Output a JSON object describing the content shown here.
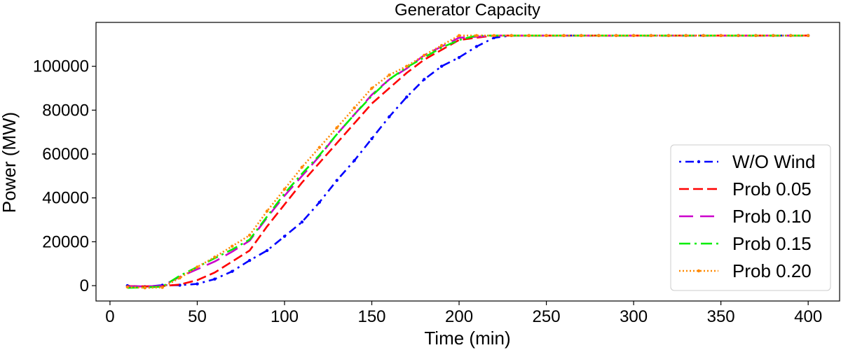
{
  "chart_data": {
    "type": "line",
    "title": "Generator Capacity",
    "xlabel": "Time (min)",
    "ylabel": "Power (MW)",
    "xlim": [
      -8,
      418
    ],
    "ylim": [
      -7000,
      120000
    ],
    "xticks": [
      0,
      50,
      100,
      150,
      200,
      250,
      300,
      350,
      400
    ],
    "yticks": [
      0,
      20000,
      40000,
      60000,
      80000,
      100000
    ],
    "xtick_labels": [
      "0",
      "50",
      "100",
      "150",
      "200",
      "250",
      "300",
      "350",
      "400"
    ],
    "ytick_labels": [
      "0",
      "20000",
      "40000",
      "60000",
      "80000",
      "100000"
    ],
    "grid": false,
    "legend_position": "lower-right",
    "x": [
      10,
      20,
      30,
      40,
      50,
      60,
      70,
      80,
      90,
      100,
      110,
      120,
      130,
      140,
      150,
      160,
      170,
      180,
      190,
      200,
      210,
      220,
      230,
      240,
      250,
      260,
      270,
      280,
      290,
      300,
      310,
      320,
      330,
      340,
      350,
      360,
      370,
      380,
      390,
      400
    ],
    "series": [
      {
        "name": "W/O Wind",
        "color": "#0000ff",
        "dash": "3,6,12,6",
        "marker": "dot",
        "values": [
          0,
          -500,
          200,
          200,
          800,
          3000,
          6500,
          11500,
          16000,
          22500,
          29000,
          38000,
          48000,
          57000,
          67000,
          77000,
          86000,
          94000,
          100000,
          104000,
          109000,
          113000,
          114000,
          114000,
          114000,
          114000,
          114000,
          114000,
          114000,
          114000,
          114000,
          114000,
          114000,
          114000,
          114000,
          114000,
          114000,
          114000,
          114000,
          114000
        ]
      },
      {
        "name": "Prob 0.05",
        "color": "#ff0000",
        "dash": "14,6",
        "marker": "none",
        "values": [
          -200,
          -300,
          -200,
          500,
          2500,
          6000,
          11000,
          16000,
          27000,
          37000,
          47000,
          56000,
          65000,
          74000,
          83000,
          90000,
          97000,
          103000,
          107500,
          112000,
          113000,
          114000,
          114000,
          114000,
          114000,
          114000,
          114000,
          114000,
          114000,
          114000,
          114000,
          114000,
          114000,
          114000,
          114000,
          114000,
          114000,
          114000,
          114000,
          114000
        ]
      },
      {
        "name": "Prob 0.10",
        "color": "#cc00cc",
        "dash": "20,10",
        "marker": "none",
        "values": [
          -400,
          -300,
          -100,
          4000,
          7500,
          11000,
          15500,
          20500,
          31000,
          41000,
          50000,
          59000,
          69000,
          78000,
          87000,
          94000,
          99000,
          105000,
          109000,
          113000,
          113500,
          114000,
          114000,
          114000,
          114000,
          114000,
          114000,
          114000,
          114000,
          114000,
          114000,
          114000,
          114000,
          114000,
          114000,
          114000,
          114000,
          114000,
          114000,
          114000
        ]
      },
      {
        "name": "Prob 0.15",
        "color": "#00ee00",
        "dash": "16,6,3,6",
        "marker": "none",
        "values": [
          -1000,
          -800,
          -500,
          4500,
          8500,
          12500,
          16500,
          21000,
          31500,
          42000,
          51000,
          59500,
          69000,
          78000,
          86500,
          94000,
          99500,
          104000,
          108500,
          112000,
          114000,
          114000,
          114000,
          114000,
          114000,
          114000,
          114000,
          114000,
          114000,
          114000,
          114000,
          114000,
          114000,
          114000,
          114000,
          114000,
          114000,
          114000,
          114000,
          114000
        ]
      },
      {
        "name": "Prob 0.20",
        "color": "#ff8800",
        "dash": "2,3",
        "marker": "dot",
        "values": [
          -600,
          -1000,
          -800,
          3500,
          8500,
          13000,
          18000,
          23000,
          34000,
          44000,
          54000,
          63000,
          72000,
          81000,
          90000,
          96000,
          100000,
          105000,
          109500,
          114000,
          114000,
          114000,
          114000,
          114000,
          114000,
          114000,
          114000,
          114000,
          114000,
          114000,
          114000,
          114000,
          114000,
          114000,
          114000,
          114000,
          114000,
          114000,
          114000,
          114000
        ]
      }
    ]
  }
}
